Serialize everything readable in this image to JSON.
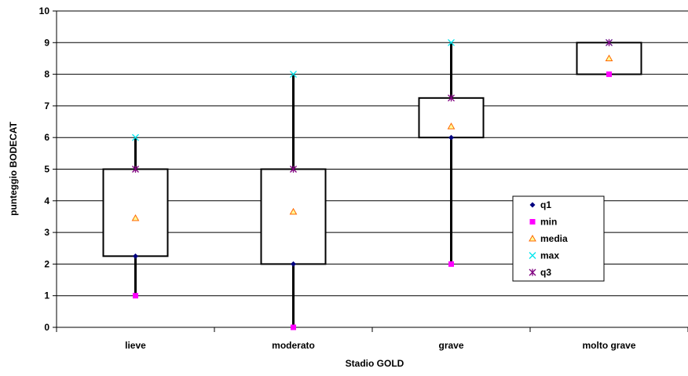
{
  "chart_data": {
    "type": "box",
    "title": "",
    "xlabel": "Stadio GOLD",
    "ylabel": "punteggio BODECAT",
    "ylim": [
      0,
      10
    ],
    "yticks": [
      "0",
      "1",
      "2",
      "3",
      "4",
      "5",
      "6",
      "7",
      "8",
      "9",
      "10"
    ],
    "grid": true,
    "legend_position": "right",
    "categories": [
      "lieve",
      "moderato",
      "grave",
      "molto grave"
    ],
    "series": [
      {
        "name": "q1",
        "values": [
          2.25,
          2,
          6,
          8
        ],
        "color": "#000080",
        "marker": "diamond"
      },
      {
        "name": "min",
        "values": [
          1,
          0,
          2,
          8
        ],
        "color": "#ff00ff",
        "marker": "square"
      },
      {
        "name": "media",
        "values": [
          3.45,
          3.65,
          6.35,
          8.5
        ],
        "color": "#ff6600",
        "marker": "triangle"
      },
      {
        "name": "max",
        "values": [
          6,
          8,
          9,
          9
        ],
        "color": "#00e5ee",
        "marker": "x"
      },
      {
        "name": "q3",
        "values": [
          5,
          5,
          7.25,
          9
        ],
        "color": "#800080",
        "marker": "star"
      }
    ]
  }
}
